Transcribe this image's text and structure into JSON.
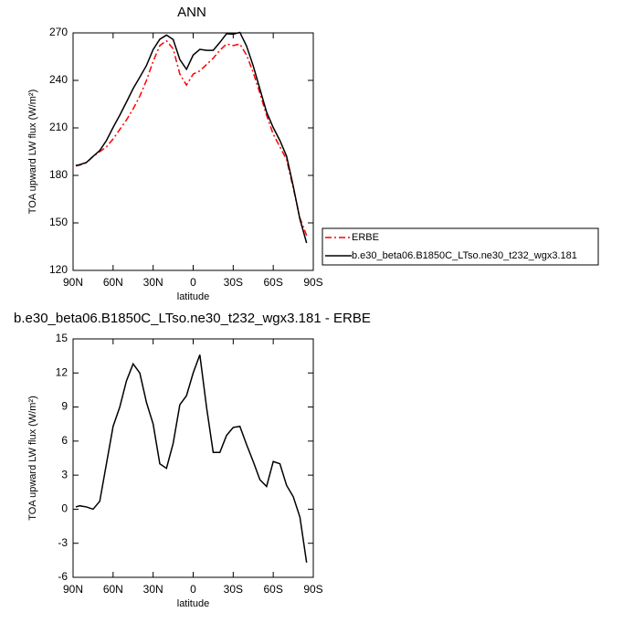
{
  "chart_data": [
    {
      "type": "line",
      "title": "ANN",
      "xlabel": "latitude",
      "ylabel": "TOA upward LW flux (W/m²)",
      "x": [
        88,
        85,
        80,
        75,
        70,
        65,
        60,
        55,
        50,
        45,
        40,
        35,
        30,
        25,
        20,
        15,
        10,
        5,
        0,
        -5,
        -10,
        -15,
        -20,
        -25,
        -30,
        -35,
        -40,
        -45,
        -50,
        -55,
        -60,
        -65,
        -70,
        -75,
        -80,
        -85
      ],
      "series": [
        {
          "name": "ERBE",
          "color": "#ff0000",
          "linestyle": "dashed",
          "values": [
            186,
            186.5,
            188,
            192,
            195,
            198,
            203,
            209,
            215,
            222,
            230,
            240,
            252,
            262,
            265,
            260,
            244,
            237,
            244,
            246,
            250,
            254,
            259,
            263,
            262,
            263,
            256,
            245,
            232,
            218,
            206,
            198,
            190,
            172,
            153,
            142
          ]
        },
        {
          "name": "b.e30_beta06.B1850C_LTso.ne30_t232_wgx3.181",
          "color": "#000000",
          "linestyle": "solid",
          "values": [
            186.2,
            186.8,
            188.2,
            192,
            195.7,
            202,
            210.3,
            218,
            226.3,
            234.8,
            242,
            249.4,
            259.5,
            266,
            268.6,
            265.8,
            253.2,
            247,
            256,
            259.6,
            259,
            259,
            264,
            269.5,
            269.2,
            270.3,
            261.7,
            249.2,
            234.6,
            220,
            210.2,
            202,
            192.1,
            173.1,
            152.3,
            137.3
          ]
        }
      ],
      "xlim": [
        90,
        -90
      ],
      "xticks": [
        {
          "value": 90,
          "label": "90N"
        },
        {
          "value": 60,
          "label": "60N"
        },
        {
          "value": 30,
          "label": "30N"
        },
        0,
        {
          "value": -30,
          "label": "30S"
        },
        {
          "value": -60,
          "label": "60S"
        },
        {
          "value": -90,
          "label": "90S"
        }
      ],
      "ylim": [
        120,
        270
      ],
      "yticks": [
        120,
        150,
        180,
        210,
        240,
        270
      ],
      "legend": "right"
    },
    {
      "type": "line",
      "title": "b.e30_beta06.B1850C_LTso.ne30_t232_wgx3.181 - ERBE",
      "xlabel": "latitude",
      "ylabel": "TOA upward LW flux (W/m²)",
      "x": [
        88,
        85,
        80,
        75,
        70,
        65,
        60,
        55,
        50,
        45,
        40,
        35,
        30,
        25,
        20,
        15,
        10,
        5,
        0,
        -5,
        -10,
        -15,
        -20,
        -25,
        -30,
        -35,
        -40,
        -45,
        -50,
        -55,
        -60,
        -65,
        -70,
        -75,
        -80,
        -85
      ],
      "series": [
        {
          "color": "#000000",
          "linestyle": "solid",
          "values": [
            0.2,
            0.3,
            0.2,
            0,
            0.7,
            4,
            7.3,
            9,
            11.3,
            12.8,
            12,
            9.4,
            7.5,
            4,
            3.6,
            5.8,
            9.2,
            10,
            12,
            13.6,
            9,
            5,
            5,
            6.5,
            7.2,
            7.3,
            5.7,
            4.2,
            2.6,
            2,
            4.2,
            4,
            2.1,
            1.1,
            -0.7,
            -4.7
          ]
        }
      ],
      "xlim": [
        90,
        -90
      ],
      "xticks": [
        {
          "value": 90,
          "label": "90N"
        },
        {
          "value": 60,
          "label": "60N"
        },
        {
          "value": 30,
          "label": "30N"
        },
        0,
        {
          "value": -30,
          "label": "30S"
        },
        {
          "value": -60,
          "label": "60S"
        },
        {
          "value": -90,
          "label": "90S"
        }
      ],
      "ylim": [
        -6,
        15
      ],
      "yticks": [
        -6,
        -3,
        0,
        3,
        6,
        9,
        12,
        15
      ]
    }
  ]
}
